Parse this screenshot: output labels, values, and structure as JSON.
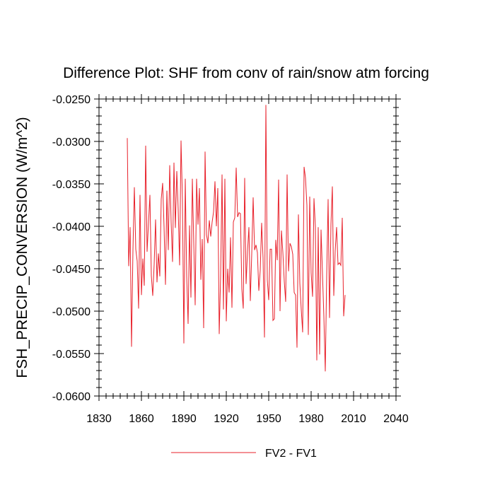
{
  "chart_data": {
    "type": "line",
    "title": "Difference Plot: SHF from conv of rain/snow atm forcing",
    "xlabel": "",
    "ylabel": "FSH_PRECIP_CONVERSION  (W/m^2)",
    "xlim": [
      1830,
      2040
    ],
    "ylim": [
      -0.06,
      -0.025
    ],
    "x_ticks": [
      "1830",
      "1860",
      "1890",
      "1920",
      "1950",
      "1980",
      "2010",
      "2040"
    ],
    "y_ticks": [
      "-0.0250",
      "-0.0300",
      "-0.0350",
      "-0.0400",
      "-0.0450",
      "-0.0500",
      "-0.0550",
      "-0.0600"
    ],
    "x_tick_values": [
      1830,
      1860,
      1890,
      1920,
      1950,
      1980,
      2010,
      2040
    ],
    "y_tick_values": [
      -0.025,
      -0.03,
      -0.035,
      -0.04,
      -0.045,
      -0.05,
      -0.055,
      -0.06
    ],
    "legend": {
      "placement": "bottom-center"
    },
    "series": [
      {
        "name": "FV2 - FV1",
        "color": "#e8212b",
        "x_start": 1850,
        "values": [
          -0.0296,
          -0.0447,
          -0.0401,
          -0.0542,
          -0.0428,
          -0.0354,
          -0.0427,
          -0.0441,
          -0.0497,
          -0.0363,
          -0.0481,
          -0.0438,
          -0.047,
          -0.0305,
          -0.043,
          -0.0396,
          -0.0363,
          -0.0458,
          -0.0482,
          -0.0445,
          -0.0392,
          -0.0466,
          -0.0432,
          -0.0459,
          -0.0368,
          -0.0349,
          -0.0401,
          -0.0469,
          -0.0358,
          -0.0428,
          -0.0328,
          -0.0395,
          -0.0442,
          -0.0325,
          -0.0402,
          -0.0335,
          -0.038,
          -0.0446,
          -0.0299,
          -0.0369,
          -0.0538,
          -0.0344,
          -0.0459,
          -0.0515,
          -0.0399,
          -0.0484,
          -0.0344,
          -0.042,
          -0.0493,
          -0.0344,
          -0.0398,
          -0.0355,
          -0.0463,
          -0.0415,
          -0.052,
          -0.0312,
          -0.041,
          -0.042,
          -0.0393,
          -0.0412,
          -0.0395,
          -0.0383,
          -0.0347,
          -0.04,
          -0.0355,
          -0.0527,
          -0.0459,
          -0.0339,
          -0.0498,
          -0.0344,
          -0.0512,
          -0.045,
          -0.0478,
          -0.0413,
          -0.0496,
          -0.0395,
          -0.039,
          -0.0331,
          -0.0389,
          -0.0384,
          -0.0385,
          -0.0474,
          -0.0497,
          -0.0343,
          -0.0468,
          -0.043,
          -0.0401,
          -0.0488,
          -0.0432,
          -0.0366,
          -0.0428,
          -0.0422,
          -0.0431,
          -0.0476,
          -0.0452,
          -0.0396,
          -0.0437,
          -0.0531,
          -0.0257,
          -0.0463,
          -0.0487,
          -0.0427,
          -0.0427,
          -0.0511,
          -0.0509,
          -0.0416,
          -0.044,
          -0.0345,
          -0.05,
          -0.0405,
          -0.0431,
          -0.0465,
          -0.0489,
          -0.0339,
          -0.0453,
          -0.042,
          -0.0424,
          -0.0433,
          -0.0478,
          -0.0481,
          -0.0543,
          -0.0386,
          -0.0467,
          -0.0498,
          -0.0525,
          -0.033,
          -0.0343,
          -0.0375,
          -0.0528,
          -0.0365,
          -0.0455,
          -0.0483,
          -0.0367,
          -0.0401,
          -0.0558,
          -0.0401,
          -0.0551,
          -0.0404,
          -0.0455,
          -0.0507,
          -0.0571,
          -0.0457,
          -0.0368,
          -0.0508,
          -0.0398,
          -0.0353,
          -0.0482,
          -0.0429,
          -0.0401,
          -0.0445,
          -0.0443,
          -0.0446,
          -0.039,
          -0.0506,
          -0.0481
        ]
      }
    ]
  }
}
